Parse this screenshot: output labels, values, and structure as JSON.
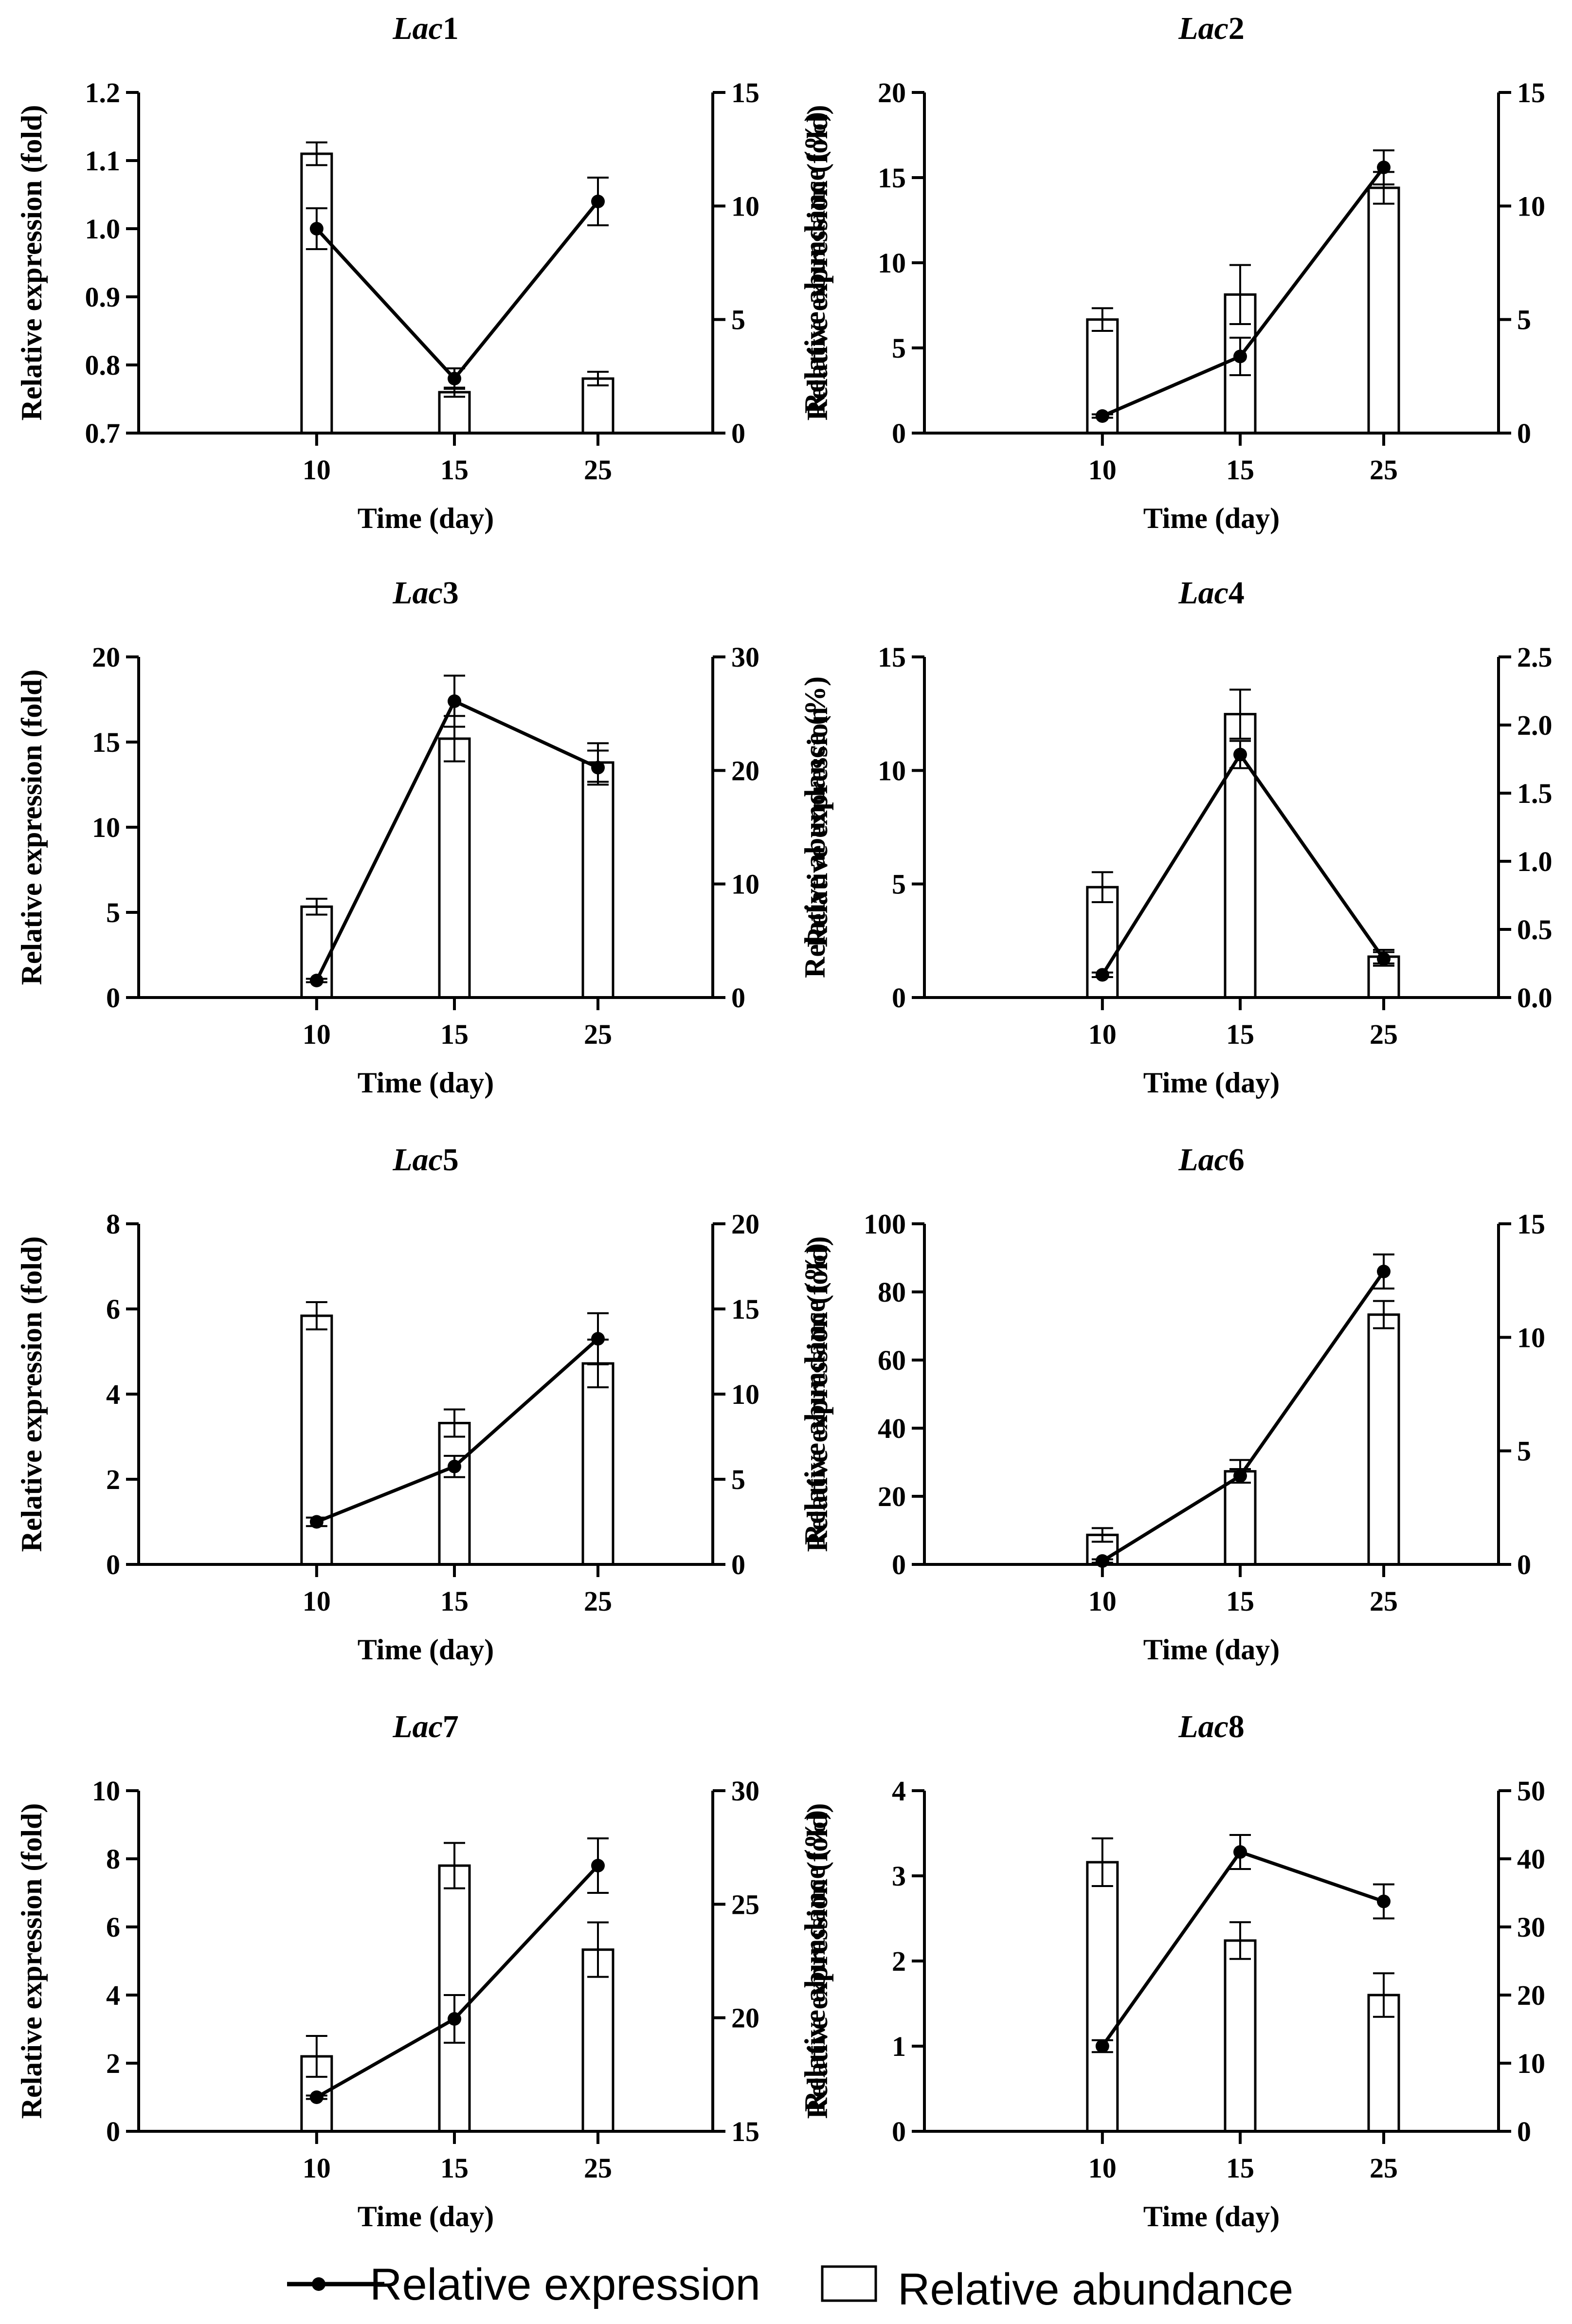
{
  "figure": {
    "legend": {
      "line_label": "Relative expression",
      "bar_label": "Relative abundance"
    }
  },
  "chart_data": [
    {
      "type": "bar+line",
      "title_prefix": "Lac",
      "title_suffix": "1",
      "xlabel": "Time (day)",
      "ylabel": "Relative expression (fold)",
      "y2label": "Relative abundance (%)",
      "categories": [
        "10",
        "15",
        "25"
      ],
      "ylim": [
        0.7,
        1.2
      ],
      "yticks": [
        "0.7",
        "0.8",
        "0.9",
        "1.0",
        "1.1",
        "1.2"
      ],
      "y2lim": [
        0,
        15
      ],
      "y2ticks": [
        "0",
        "5",
        "10",
        "15"
      ],
      "series": [
        {
          "name": "Relative expression",
          "type": "line",
          "axis": "left",
          "values": [
            1.0,
            0.78,
            1.04
          ],
          "errors": [
            0.03,
            0.015,
            0.035
          ]
        },
        {
          "name": "Relative abundance",
          "type": "bar",
          "axis": "right",
          "values": [
            12.3,
            1.8,
            2.4
          ],
          "errors": [
            0.5,
            0.2,
            0.3
          ]
        }
      ]
    },
    {
      "type": "bar+line",
      "title_prefix": "Lac",
      "title_suffix": "2",
      "xlabel": "Time (day)",
      "ylabel": "Relative expression (fold)",
      "y2label": "Relative abundance (%)",
      "categories": [
        "10",
        "15",
        "25"
      ],
      "ylim": [
        0,
        20
      ],
      "yticks": [
        "0",
        "5",
        "10",
        "15",
        "20"
      ],
      "y2lim": [
        0,
        15
      ],
      "y2ticks": [
        "0",
        "5",
        "10",
        "15"
      ],
      "series": [
        {
          "name": "Relative expression",
          "type": "line",
          "axis": "left",
          "values": [
            1.0,
            4.5,
            15.6
          ],
          "errors": [
            0.1,
            1.1,
            1.0
          ]
        },
        {
          "name": "Relative abundance",
          "type": "bar",
          "axis": "right",
          "values": [
            5.0,
            6.1,
            10.8
          ],
          "errors": [
            0.5,
            1.3,
            0.7
          ]
        }
      ]
    },
    {
      "type": "bar+line",
      "title_prefix": "Lac",
      "title_suffix": "3",
      "xlabel": "Time (day)",
      "ylabel": "Relative expression (fold)",
      "y2label": "Relative abundance (%)",
      "categories": [
        "10",
        "15",
        "25"
      ],
      "ylim": [
        0,
        20
      ],
      "yticks": [
        "0",
        "5",
        "10",
        "15",
        "20"
      ],
      "y2lim": [
        0,
        30
      ],
      "y2ticks": [
        "0",
        "10",
        "20",
        "30"
      ],
      "series": [
        {
          "name": "Relative expression",
          "type": "line",
          "axis": "left",
          "values": [
            1.0,
            17.4,
            13.5
          ],
          "errors": [
            0.1,
            1.5,
            1.0
          ]
        },
        {
          "name": "Relative abundance",
          "type": "bar",
          "axis": "right",
          "values": [
            8.0,
            22.8,
            20.7
          ],
          "errors": [
            0.7,
            2.0,
            1.7
          ]
        }
      ]
    },
    {
      "type": "bar+line",
      "title_prefix": "Lac",
      "title_suffix": "4",
      "xlabel": "Time (day)",
      "ylabel": "Relative expression",
      "y2label": "Relative abundance (%)",
      "categories": [
        "10",
        "15",
        "25"
      ],
      "ylim": [
        0,
        15
      ],
      "yticks": [
        "0",
        "5",
        "10",
        "15"
      ],
      "y2lim": [
        0,
        2.5
      ],
      "y2ticks": [
        "0.0",
        "0.5",
        "1.0",
        "1.5",
        "2.0",
        "2.5"
      ],
      "series": [
        {
          "name": "Relative expression",
          "type": "line",
          "axis": "left",
          "values": [
            1.0,
            10.7,
            1.7
          ],
          "errors": [
            0.1,
            0.6,
            0.3
          ]
        },
        {
          "name": "Relative abundance",
          "type": "bar",
          "axis": "right",
          "values": [
            0.81,
            2.08,
            0.3
          ],
          "errors": [
            0.11,
            0.18,
            0.05
          ]
        }
      ]
    },
    {
      "type": "bar+line",
      "title_prefix": "Lac",
      "title_suffix": "5",
      "xlabel": "Time (day)",
      "ylabel": "Relative expression (fold)",
      "y2label": "Relative abundance (%)",
      "categories": [
        "10",
        "15",
        "25"
      ],
      "ylim": [
        0,
        8
      ],
      "yticks": [
        "0",
        "2",
        "4",
        "6",
        "8"
      ],
      "y2lim": [
        0,
        20
      ],
      "y2ticks": [
        "0",
        "5",
        "10",
        "15",
        "20"
      ],
      "series": [
        {
          "name": "Relative expression",
          "type": "line",
          "axis": "left",
          "values": [
            1.0,
            2.3,
            5.3
          ],
          "errors": [
            0.1,
            0.25,
            0.6
          ]
        },
        {
          "name": "Relative abundance",
          "type": "bar",
          "axis": "right",
          "values": [
            14.6,
            8.3,
            11.8
          ],
          "errors": [
            0.8,
            0.8,
            1.4
          ]
        }
      ]
    },
    {
      "type": "bar+line",
      "title_prefix": "Lac",
      "title_suffix": "6",
      "xlabel": "Time (day)",
      "ylabel": "Relative expression (fold)",
      "y2label": "Relative abundance (%)",
      "categories": [
        "10",
        "15",
        "25"
      ],
      "ylim": [
        0,
        100
      ],
      "yticks": [
        "0",
        "20",
        "40",
        "60",
        "80",
        "100"
      ],
      "y2lim": [
        0,
        15
      ],
      "y2ticks": [
        "0",
        "5",
        "10",
        "15"
      ],
      "series": [
        {
          "name": "Relative expression",
          "type": "line",
          "axis": "left",
          "values": [
            1.0,
            26.0,
            86.0
          ],
          "errors": [
            0.5,
            2.0,
            5.0
          ]
        },
        {
          "name": "Relative abundance",
          "type": "bar",
          "axis": "right",
          "values": [
            1.3,
            4.1,
            11.0
          ],
          "errors": [
            0.3,
            0.5,
            0.6
          ]
        }
      ]
    },
    {
      "type": "bar+line",
      "title_prefix": "Lac",
      "title_suffix": "7",
      "xlabel": "Time (day)",
      "ylabel": "Relative expression (fold)",
      "y2label": "Relative abundance (%)",
      "categories": [
        "10",
        "15",
        "25"
      ],
      "ylim": [
        0,
        10
      ],
      "yticks": [
        "0",
        "2",
        "4",
        "6",
        "8",
        "10"
      ],
      "y2lim": [
        15,
        30
      ],
      "y2ticks": [
        "15",
        "20",
        "25",
        "30"
      ],
      "series": [
        {
          "name": "Relative expression",
          "type": "line",
          "axis": "left",
          "values": [
            1.0,
            3.3,
            7.8
          ],
          "errors": [
            0.05,
            0.7,
            0.8
          ]
        },
        {
          "name": "Relative abundance",
          "type": "bar",
          "axis": "right",
          "values": [
            18.3,
            26.7,
            23.0
          ],
          "errors": [
            0.9,
            1.0,
            1.2
          ]
        }
      ]
    },
    {
      "type": "bar+line",
      "title_prefix": "Lac",
      "title_suffix": "8",
      "xlabel": "Time (day)",
      "ylabel": "Relative expression (fold)",
      "y2label": "Relative abundance (%)",
      "categories": [
        "10",
        "15",
        "25"
      ],
      "ylim": [
        0,
        4
      ],
      "yticks": [
        "0",
        "1",
        "2",
        "3",
        "4"
      ],
      "y2lim": [
        0,
        50
      ],
      "y2ticks": [
        "0",
        "10",
        "20",
        "30",
        "40",
        "50"
      ],
      "series": [
        {
          "name": "Relative expression",
          "type": "line",
          "axis": "left",
          "values": [
            1.0,
            3.28,
            2.7
          ],
          "errors": [
            0.07,
            0.2,
            0.2
          ]
        },
        {
          "name": "Relative abundance",
          "type": "bar",
          "axis": "right",
          "values": [
            39.5,
            28.0,
            20.0
          ],
          "errors": [
            3.5,
            2.7,
            3.2
          ]
        }
      ]
    }
  ]
}
